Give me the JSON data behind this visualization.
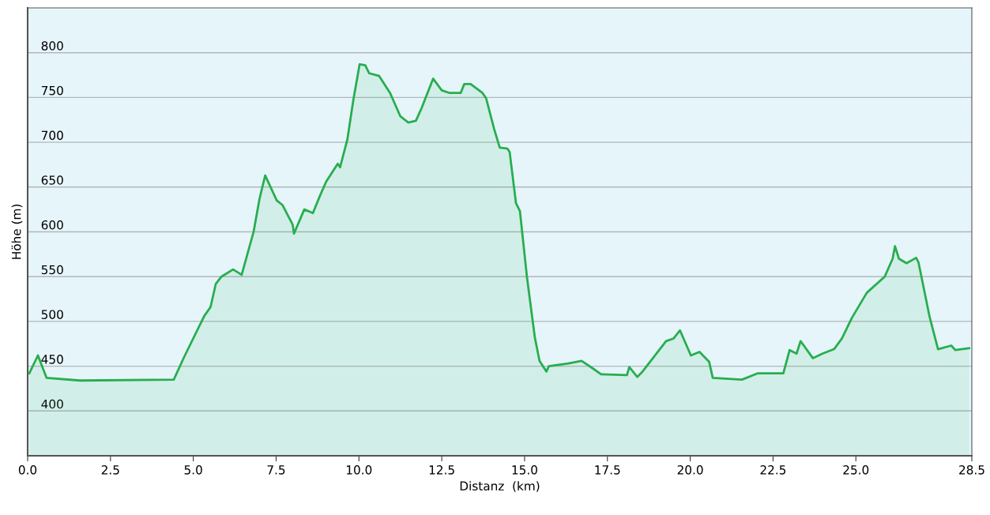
{
  "chart_data": {
    "type": "area",
    "xlabel": "Distanz  (km)",
    "ylabel": "Höhe (m)",
    "xlim": [
      0,
      28.5
    ],
    "xticks": [
      {
        "value": 0,
        "label": "0.0"
      },
      2.5,
      {
        "value": 5,
        "label": "5.0"
      },
      7.5,
      {
        "value": 10,
        "label": "10.0"
      },
      12.5,
      {
        "value": 15,
        "label": "15.0"
      },
      17.5,
      {
        "value": 20,
        "label": "20.0"
      },
      22.5,
      {
        "value": 25,
        "label": "25.0"
      },
      28.5
    ],
    "ylim": [
      350,
      850
    ],
    "yticks": [
      400,
      450,
      500,
      550,
      600,
      650,
      700,
      750,
      800
    ],
    "grid": "y",
    "series": [
      {
        "color": "#27ae4f",
        "x": [
          0.05,
          0.31,
          0.57,
          1.58,
          4.41,
          4.72,
          5.33,
          5.52,
          5.68,
          5.85,
          6.2,
          6.46,
          6.82,
          7.0,
          7.17,
          7.52,
          7.69,
          8.0,
          8.04,
          8.35,
          8.61,
          8.82,
          9.01,
          9.36,
          9.43,
          9.65,
          9.83,
          10.02,
          10.19,
          10.31,
          10.61,
          10.94,
          11.25,
          11.49,
          11.72,
          11.89,
          12.24,
          12.5,
          12.74,
          13.07,
          13.18,
          13.37,
          13.73,
          13.84,
          14.08,
          14.25,
          14.48,
          14.55,
          14.74,
          14.86,
          15.07,
          15.31,
          15.45,
          15.66,
          15.73,
          16.32,
          16.72,
          17.08,
          17.31,
          18.09,
          18.16,
          18.4,
          18.56,
          19.27,
          19.5,
          19.69,
          20.02,
          20.28,
          20.57,
          20.68,
          21.56,
          22.03,
          22.81,
          23.0,
          23.21,
          23.33,
          23.7,
          23.99,
          24.34,
          24.58,
          24.88,
          25.33,
          25.87,
          26.11,
          26.18,
          26.3,
          26.53,
          26.82,
          26.89,
          27.22,
          27.48,
          27.88,
          28.0,
          28.42
        ],
        "values": [
          442,
          462,
          437,
          434,
          435,
          460,
          506,
          516,
          542,
          550,
          558,
          552,
          600,
          637,
          663,
          635,
          630,
          608,
          598,
          625,
          621,
          640,
          656,
          676,
          672,
          703,
          747,
          787,
          786,
          777,
          774,
          755,
          729,
          722,
          724,
          738,
          771,
          758,
          755,
          755,
          765,
          765,
          755,
          749,
          715,
          694,
          693,
          689,
          632,
          623,
          550,
          482,
          456,
          444,
          450,
          453,
          456,
          447,
          441,
          440,
          449,
          438,
          444,
          478,
          481,
          490,
          462,
          466,
          455,
          437,
          435,
          442,
          442,
          468,
          464,
          478,
          459,
          464,
          469,
          481,
          504,
          532,
          550,
          570,
          584,
          570,
          565,
          571,
          566,
          506,
          469,
          473,
          468,
          470
        ]
      }
    ]
  }
}
